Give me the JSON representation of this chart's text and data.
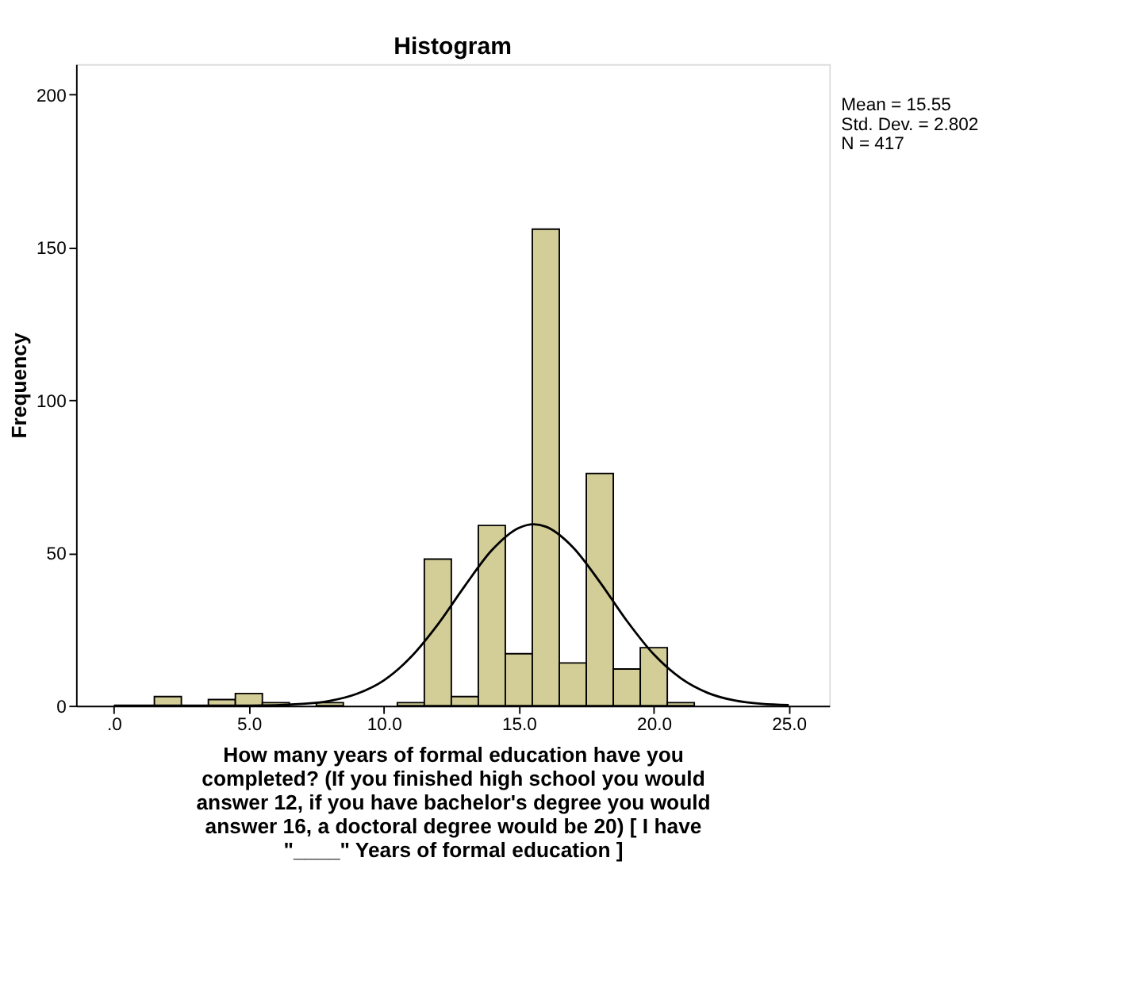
{
  "chart_data": {
    "type": "histogram",
    "title": "Histogram",
    "xlabel": "How many years of formal education have you\ncompleted? (If you finished high school you would\nanswer 12, if you have bachelor's degree you would\nanswer 16, a doctoral degree would be 20) [ I have\n\"____\" Years of formal education ]",
    "ylabel": "Frequency",
    "bins": [
      1.5,
      2.5,
      3.5,
      4.5,
      5.5,
      6.5,
      7.5,
      8.5,
      9.5,
      10.5,
      11.5,
      12.5,
      13.5,
      14.5,
      15.5,
      16.5,
      17.5,
      18.5,
      19.5,
      20.5,
      21.5
    ],
    "values": [
      3,
      0,
      2,
      4,
      1,
      0,
      1,
      0,
      0,
      1,
      48,
      3,
      59,
      17,
      156,
      14,
      76,
      12,
      19,
      1
    ],
    "color": "#d3ce97",
    "series": [
      {
        "type": "line",
        "color": "#000000",
        "x": [
          0,
          2,
          5,
          7,
          8,
          9,
          10,
          11,
          12,
          13,
          14,
          15,
          15.55,
          16,
          17,
          18,
          19,
          20,
          21,
          22,
          23,
          24,
          25
        ],
        "values": [
          0,
          0,
          0,
          0.6,
          1.6,
          3.9,
          8.3,
          15.9,
          26.6,
          39.2,
          50.9,
          58.2,
          59.4,
          58.6,
          51.9,
          40.5,
          27.8,
          16.8,
          9.0,
          4.2,
          1.7,
          0.6,
          0.2
        ]
      }
    ],
    "xlim": [
      -1.4,
      26.5
    ],
    "xticks": [
      {
        "value": 0,
        "label": ".0"
      },
      {
        "value": 5,
        "label": "5.0"
      },
      {
        "value": 10,
        "label": "10.0"
      },
      {
        "value": 15,
        "label": "15.0"
      },
      {
        "value": 20,
        "label": "20.0"
      },
      {
        "value": 25,
        "label": "25.0"
      }
    ],
    "ylim": [
      0,
      210
    ],
    "yticks": [
      0,
      50,
      100,
      150,
      200
    ],
    "grid": false,
    "annotations": [
      "Mean = 15.55",
      "Std. Dev. = 2.802",
      "N = 417"
    ]
  }
}
